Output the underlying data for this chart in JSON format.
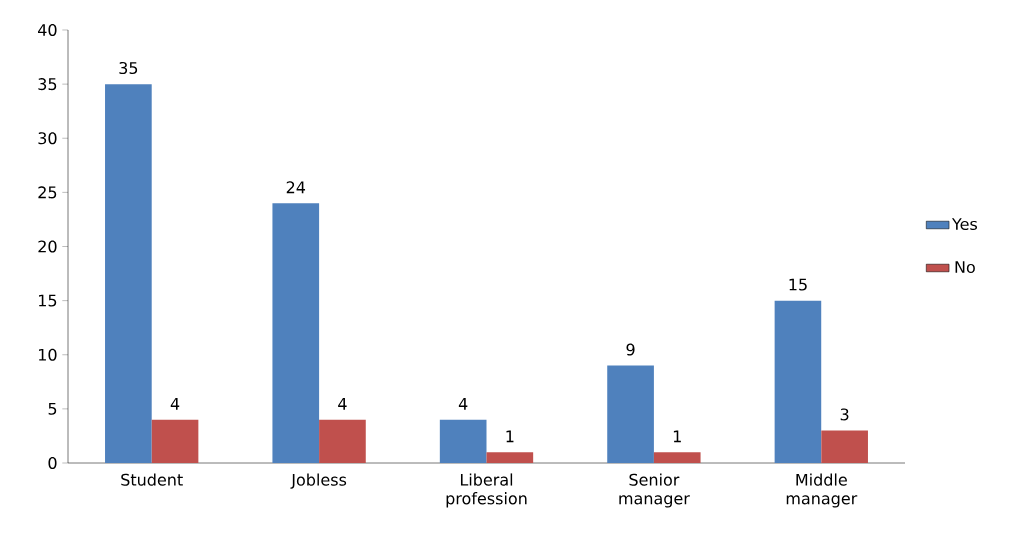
{
  "chart_data": {
    "type": "bar",
    "categories": [
      "Student",
      "Jobless",
      "Liberal profession",
      "Senior manager",
      "Middle manager"
    ],
    "series": [
      {
        "name": "Yes",
        "color": "#4f81bd",
        "values": [
          35,
          24,
          4,
          9,
          15
        ]
      },
      {
        "name": "No",
        "color": "#c0504d",
        "values": [
          4,
          4,
          1,
          1,
          3
        ]
      }
    ],
    "ylim": [
      0,
      40
    ],
    "yticks": [
      0,
      5,
      10,
      15,
      20,
      25,
      30,
      35,
      40
    ],
    "data_labels": true,
    "legend": "right",
    "grid": false
  }
}
